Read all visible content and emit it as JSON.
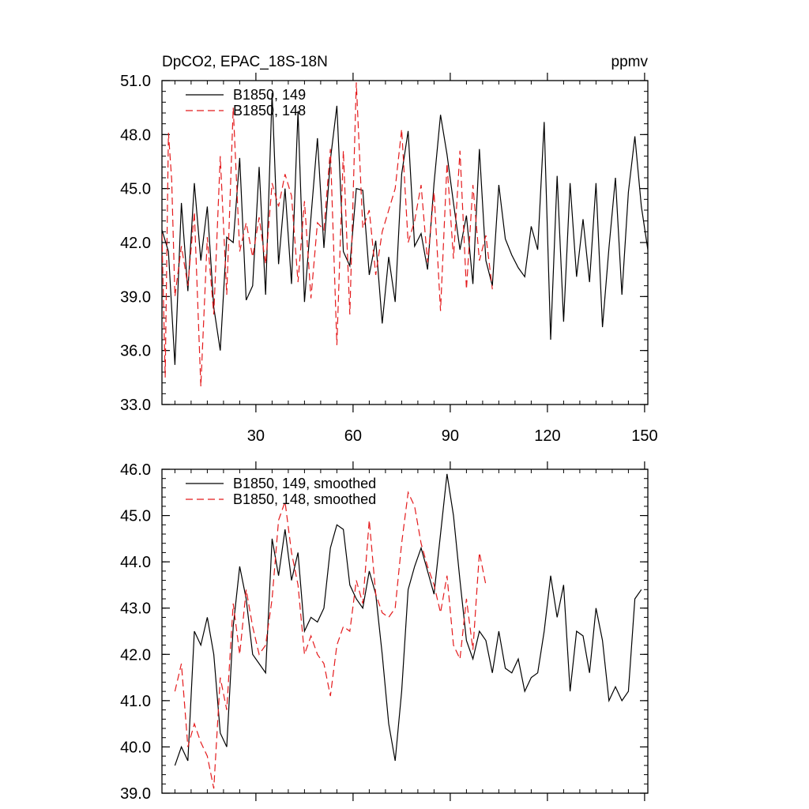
{
  "chart_data": [
    {
      "type": "line",
      "title": "DpCO2, EPAC_18S-18N",
      "units": "ppmv",
      "xlim": [
        1,
        151
      ],
      "ylim": [
        33,
        51
      ],
      "xticks": [
        30,
        60,
        90,
        120,
        150
      ],
      "xtick_labels": [
        "30",
        "60",
        "90",
        "120",
        "150"
      ],
      "yticks": [
        33,
        36,
        39,
        42,
        45,
        48,
        51
      ],
      "ytick_labels": [
        "33.0",
        "36.0",
        "39.0",
        "42.0",
        "45.0",
        "48.0",
        "51.0"
      ],
      "grid": false,
      "legend_position": "top-left",
      "series": [
        {
          "name": "B1850, 149",
          "color": "#000000",
          "dash": "solid",
          "x": [
            1,
            3,
            5,
            7,
            9,
            11,
            13,
            15,
            17,
            19,
            21,
            23,
            25,
            27,
            29,
            31,
            33,
            35,
            37,
            39,
            41,
            43,
            45,
            47,
            49,
            51,
            53,
            55,
            57,
            59,
            61,
            63,
            65,
            67,
            69,
            71,
            73,
            75,
            77,
            79,
            81,
            83,
            85,
            87,
            89,
            91,
            93,
            95,
            97,
            99,
            101,
            103,
            105,
            107,
            109,
            111,
            113,
            115,
            117,
            119,
            121,
            123,
            125,
            127,
            129,
            131,
            133,
            135,
            137,
            139,
            141,
            143,
            145,
            147,
            149,
            151
          ],
          "y": [
            42.7,
            41.5,
            35.2,
            44.2,
            39.3,
            45.3,
            41.0,
            44.0,
            38.4,
            36.0,
            42.3,
            42.0,
            46.7,
            38.8,
            39.6,
            46.2,
            39.1,
            50.3,
            40.8,
            45.0,
            39.7,
            49.3,
            38.7,
            43.4,
            47.8,
            41.7,
            46.6,
            49.6,
            41.5,
            40.7,
            45.0,
            44.9,
            40.2,
            42.1,
            37.5,
            41.2,
            38.7,
            45.8,
            48.2,
            41.8,
            42.5,
            40.5,
            45.3,
            49.1,
            46.9,
            44.2,
            41.6,
            43.5,
            39.7,
            47.2,
            41.0,
            39.6,
            45.2,
            42.2,
            41.3,
            40.6,
            40.1,
            42.9,
            41.6,
            48.7,
            36.6,
            45.7,
            37.6,
            45.3,
            40.1,
            43.3,
            39.8,
            45.3,
            37.3,
            41.7,
            45.6,
            39.1,
            44.8,
            47.9,
            44.0,
            41.6
          ]
        },
        {
          "name": "B1850, 148",
          "color": "#e41a1c",
          "dash": "dashed",
          "x": [
            1,
            2,
            3,
            4,
            5,
            7,
            9,
            11,
            13,
            15,
            17,
            19,
            21,
            23,
            25,
            27,
            29,
            31,
            33,
            35,
            37,
            39,
            41,
            43,
            45,
            47,
            49,
            51,
            53,
            55,
            57,
            59,
            61,
            63,
            65,
            67,
            69,
            71,
            73,
            75,
            77,
            79,
            81,
            83,
            85,
            87,
            89,
            91,
            93,
            95,
            97,
            99,
            101,
            103
          ],
          "y": [
            42.5,
            34.5,
            48.1,
            45.5,
            39.0,
            41.8,
            39.6,
            43.7,
            34.0,
            42.3,
            38.0,
            46.8,
            39.1,
            49.5,
            41.5,
            43.1,
            41.2,
            43.4,
            40.8,
            45.3,
            44.0,
            45.8,
            44.6,
            39.8,
            44.3,
            38.9,
            43.1,
            42.7,
            47.2,
            36.3,
            47.1,
            38.0,
            50.9,
            42.8,
            43.8,
            40.2,
            42.6,
            43.8,
            45.0,
            48.3,
            42.0,
            43.2,
            45.2,
            40.9,
            44.8,
            38.2,
            46.4,
            41.1,
            47.1,
            39.4,
            45.2,
            41.0,
            42.4,
            39.4
          ]
        }
      ]
    },
    {
      "type": "line",
      "xlim": [
        1,
        151
      ],
      "ylim": [
        39,
        46
      ],
      "xticks": [
        30,
        60,
        90,
        120,
        150
      ],
      "yticks": [
        39,
        40,
        41,
        42,
        43,
        44,
        45,
        46
      ],
      "ytick_labels": [
        "39.0",
        "40.0",
        "41.0",
        "42.0",
        "43.0",
        "44.0",
        "45.0",
        "46.0"
      ],
      "grid": false,
      "legend_position": "top-left",
      "series": [
        {
          "name": "B1850, 149, smoothed",
          "color": "#000000",
          "dash": "solid",
          "x": [
            5,
            7,
            9,
            11,
            13,
            15,
            17,
            19,
            21,
            23,
            25,
            27,
            29,
            31,
            33,
            35,
            37,
            39,
            41,
            43,
            45,
            47,
            49,
            51,
            53,
            55,
            57,
            59,
            61,
            63,
            65,
            67,
            69,
            71,
            73,
            75,
            77,
            79,
            81,
            83,
            85,
            87,
            89,
            91,
            93,
            95,
            97,
            99,
            101,
            103,
            105,
            107,
            109,
            111,
            113,
            115,
            117,
            119,
            121,
            123,
            125,
            127,
            129,
            131,
            133,
            135,
            137,
            139,
            141,
            143,
            145,
            147,
            149
          ],
          "y": [
            39.6,
            40.0,
            39.7,
            42.5,
            42.2,
            42.8,
            42.0,
            40.3,
            40.0,
            42.6,
            43.9,
            43.2,
            42.0,
            41.8,
            41.6,
            44.5,
            43.7,
            44.7,
            43.6,
            44.2,
            42.5,
            42.8,
            42.7,
            43.0,
            44.3,
            44.8,
            44.7,
            43.5,
            43.2,
            43.0,
            43.8,
            43.3,
            42.0,
            40.5,
            39.7,
            41.2,
            43.4,
            43.9,
            44.3,
            43.8,
            43.3,
            44.6,
            45.9,
            45.0,
            43.6,
            42.3,
            41.9,
            42.5,
            42.3,
            41.6,
            42.5,
            41.7,
            41.6,
            41.9,
            41.2,
            41.5,
            41.6,
            42.5,
            43.7,
            42.8,
            43.5,
            41.2,
            42.5,
            42.4,
            41.6,
            43.0,
            42.3,
            41.0,
            41.3,
            41.0,
            41.2,
            43.2,
            43.4
          ]
        },
        {
          "name": "B1850, 148, smoothed",
          "color": "#e41a1c",
          "dash": "dashed",
          "x": [
            5,
            7,
            9,
            11,
            13,
            15,
            17,
            19,
            21,
            23,
            25,
            27,
            29,
            31,
            33,
            35,
            37,
            39,
            41,
            43,
            45,
            47,
            49,
            51,
            53,
            55,
            57,
            59,
            61,
            63,
            65,
            67,
            69,
            71,
            73,
            75,
            77,
            79,
            81,
            83,
            85,
            87,
            89,
            91,
            93,
            95,
            97,
            99,
            101
          ],
          "y": [
            41.2,
            41.8,
            40.0,
            40.5,
            40.1,
            39.8,
            39.1,
            41.5,
            40.8,
            43.1,
            42.0,
            43.4,
            42.6,
            42.0,
            42.2,
            43.2,
            44.9,
            45.3,
            44.2,
            43.5,
            42.0,
            42.4,
            42.0,
            41.8,
            41.1,
            42.2,
            42.6,
            42.5,
            43.6,
            43.1,
            44.9,
            43.3,
            42.9,
            42.8,
            43.0,
            44.4,
            45.5,
            45.2,
            44.4,
            43.9,
            43.5,
            42.9,
            43.7,
            42.2,
            41.9,
            43.2,
            42.1,
            44.2,
            43.5
          ]
        }
      ]
    }
  ]
}
